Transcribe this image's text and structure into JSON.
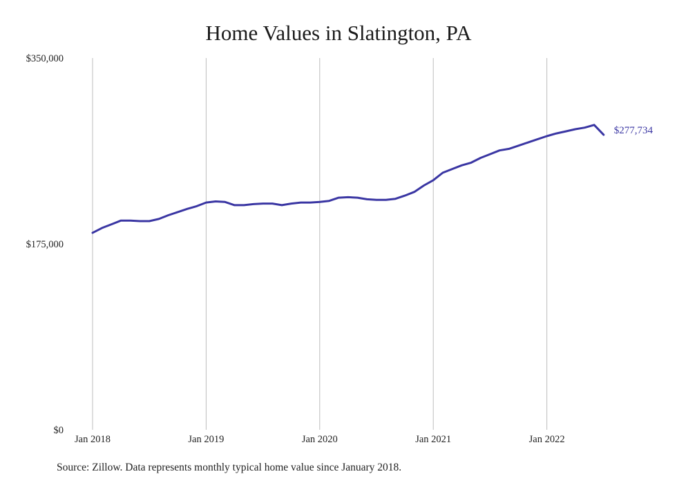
{
  "chart_data": {
    "type": "line",
    "title": "Home Values in Slatington, PA",
    "xlabel": "",
    "ylabel": "",
    "ylim": [
      0,
      350000
    ],
    "yticks": [
      {
        "value": 0,
        "label": "$0"
      },
      {
        "value": 175000,
        "label": "$175,000"
      },
      {
        "value": 350000,
        "label": "$350,000"
      }
    ],
    "xticks": [
      {
        "month_index": 0,
        "label": "Jan 2018"
      },
      {
        "month_index": 12,
        "label": "Jan 2019"
      },
      {
        "month_index": 24,
        "label": "Jan 2020"
      },
      {
        "month_index": 36,
        "label": "Jan 2021"
      },
      {
        "month_index": 48,
        "label": "Jan 2022"
      }
    ],
    "grid": "vertical",
    "line_color": "#3a36a3",
    "end_label": "$277,734",
    "series": [
      {
        "x": [
          "2018-01",
          "2018-02",
          "2018-03",
          "2018-04",
          "2018-05",
          "2018-06",
          "2018-07",
          "2018-08",
          "2018-09",
          "2018-10",
          "2018-11",
          "2018-12",
          "2019-01",
          "2019-02",
          "2019-03",
          "2019-04",
          "2019-05",
          "2019-06",
          "2019-07",
          "2019-08",
          "2019-09",
          "2019-10",
          "2019-11",
          "2019-12",
          "2020-01",
          "2020-02",
          "2020-03",
          "2020-04",
          "2020-05",
          "2020-06",
          "2020-07",
          "2020-08",
          "2020-09",
          "2020-10",
          "2020-11",
          "2020-12",
          "2021-01",
          "2021-02",
          "2021-03",
          "2021-04",
          "2021-05",
          "2021-06",
          "2021-07",
          "2021-08",
          "2021-09",
          "2021-10",
          "2021-11",
          "2021-12",
          "2022-01",
          "2022-02",
          "2022-03",
          "2022-04",
          "2022-05",
          "2022-06",
          "2022-07"
        ],
        "values": [
          185500,
          190000,
          193500,
          197000,
          197000,
          196500,
          196500,
          198500,
          202000,
          205000,
          208000,
          210500,
          214000,
          215000,
          214500,
          211500,
          211500,
          212500,
          213000,
          213000,
          211500,
          213000,
          214000,
          214000,
          214500,
          215500,
          218500,
          219000,
          218500,
          217000,
          216500,
          216500,
          217500,
          220500,
          224000,
          230000,
          235000,
          242000,
          245500,
          249000,
          251500,
          256000,
          259500,
          263000,
          264500,
          267500,
          270500,
          273500,
          276500,
          279000,
          281000,
          283000,
          284500,
          287000,
          277734
        ]
      }
    ]
  },
  "source": "Source: Zillow. Data represents monthly typical home value since January 2018."
}
